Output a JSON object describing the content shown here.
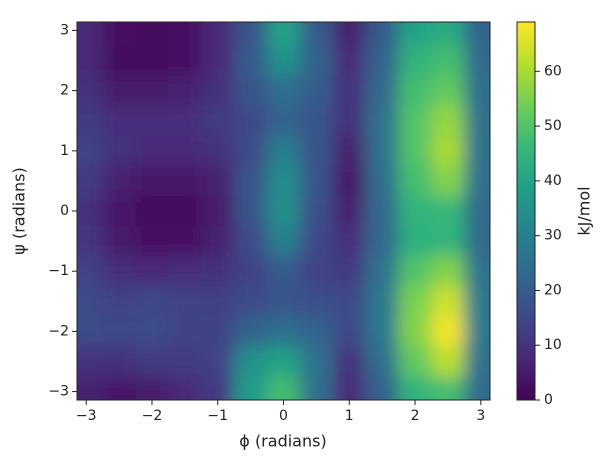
{
  "chart_data": {
    "type": "heatmap",
    "xlabel": "ϕ (radians)",
    "ylabel": "ψ (radians)",
    "x": [
      -3,
      -2.5,
      -2,
      -1.5,
      -1,
      -0.5,
      0,
      0.5,
      1,
      1.5,
      2,
      2.5,
      3
    ],
    "y": [
      3,
      2.5,
      2,
      1.5,
      1,
      0.5,
      0,
      -0.5,
      -1,
      -1.5,
      -2,
      -2.5,
      -3
    ],
    "z": [
      [
        8,
        3,
        2,
        3,
        8,
        18,
        40,
        20,
        6,
        20,
        40,
        42,
        22
      ],
      [
        8,
        2,
        2,
        3,
        8,
        20,
        35,
        22,
        8,
        22,
        45,
        48,
        24
      ],
      [
        10,
        5,
        5,
        6,
        10,
        18,
        25,
        20,
        10,
        24,
        48,
        52,
        25
      ],
      [
        12,
        9,
        9,
        9,
        12,
        15,
        22,
        18,
        10,
        26,
        50,
        58,
        26
      ],
      [
        14,
        10,
        8,
        8,
        10,
        16,
        30,
        18,
        6,
        26,
        50,
        60,
        26
      ],
      [
        12,
        6,
        4,
        4,
        6,
        18,
        34,
        18,
        4,
        25,
        48,
        56,
        25
      ],
      [
        10,
        4,
        2,
        2,
        5,
        18,
        35,
        17,
        6,
        24,
        45,
        46,
        24
      ],
      [
        11,
        5,
        3,
        3,
        6,
        16,
        30,
        15,
        9,
        24,
        44,
        45,
        24
      ],
      [
        14,
        9,
        8,
        9,
        10,
        14,
        20,
        14,
        12,
        26,
        50,
        56,
        26
      ],
      [
        16,
        14,
        15,
        14,
        13,
        16,
        18,
        17,
        15,
        28,
        55,
        64,
        28
      ],
      [
        16,
        15,
        16,
        14,
        14,
        22,
        25,
        22,
        15,
        28,
        56,
        68,
        28
      ],
      [
        10,
        10,
        12,
        12,
        14,
        35,
        40,
        26,
        10,
        25,
        52,
        62,
        26
      ],
      [
        6,
        4,
        5,
        8,
        12,
        38,
        48,
        25,
        8,
        22,
        45,
        48,
        24
      ]
    ],
    "xlim": [
      -3.14,
      3.14
    ],
    "ylim": [
      -3.14,
      3.14
    ],
    "xticks": [
      {
        "value": -3,
        "label": "−3"
      },
      {
        "value": -2,
        "label": "−2"
      },
      {
        "value": -1,
        "label": "−1"
      },
      0,
      1,
      2,
      3
    ],
    "yticks": [
      {
        "value": -3,
        "label": "−3"
      },
      {
        "value": -2,
        "label": "−2"
      },
      {
        "value": -1,
        "label": "−1"
      },
      0,
      1,
      2,
      3
    ],
    "colorbar_label": "kJ/mol",
    "zlim": [
      0,
      69
    ],
    "zticks": [
      0,
      10,
      20,
      30,
      40,
      50,
      60
    ],
    "colormap": [
      "#440154",
      "#482878",
      "#3e4989",
      "#31688e",
      "#26828e",
      "#1f9e89",
      "#35b779",
      "#6ece58",
      "#b5de2b",
      "#fde725"
    ]
  }
}
